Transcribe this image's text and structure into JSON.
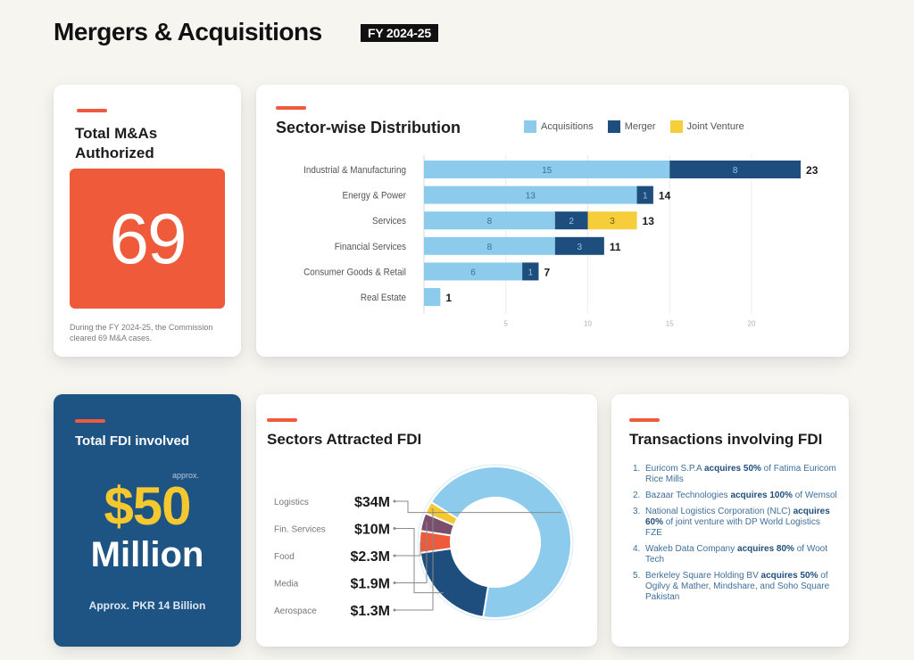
{
  "header": {
    "title": "Mergers & Acquisitions",
    "badge": "FY 2024-25"
  },
  "colors": {
    "accent_orange": "#ef5a3c",
    "acquisitions": "#8ccbec",
    "merger": "#1e4e7d",
    "joint_venture": "#f6cd3a",
    "fdi_card_bg": "#1e5484",
    "fdi_amount": "#f6c830"
  },
  "total_card": {
    "title": "Total M&As Authorized",
    "value": "69",
    "note": "During the FY 2024-25, the Commission cleared 69 M&A cases."
  },
  "fdi_card": {
    "title": "Total FDI involved",
    "approx_label": "approx.",
    "amount": "$50",
    "unit": "Million",
    "pkr": "Approx. PKR 14 Billion"
  },
  "sectors_fdi_card": {
    "title": "Sectors Attracted FDI"
  },
  "transactions_card": {
    "title": "Transactions involving FDI",
    "items": [
      {
        "num": "1.",
        "pre": "Euricom S.P.A ",
        "bold": "acquires 50%",
        "post": " of Fatima Euricom Rice Mills"
      },
      {
        "num": "2.",
        "pre": "Bazaar Technologies ",
        "bold": "acquires 100%",
        "post": " of Wemsol"
      },
      {
        "num": "3.",
        "pre": "National Logistics Corporation (NLC) ",
        "bold": "acquires 60%",
        "post": " of joint venture with DP World Logistics FZE"
      },
      {
        "num": "4.",
        "pre": "Wakeb Data Company ",
        "bold": "acquires 80%",
        "post": " of Woot Tech"
      },
      {
        "num": "5.",
        "pre": "Berkeley Square Holding BV ",
        "bold": "acquires 50%",
        "post": " of Ogilvy & Mather, Mindshare, and Soho Square Pakistan"
      }
    ]
  },
  "chart_data": [
    {
      "type": "bar",
      "orientation": "horizontal",
      "stacked": true,
      "title": "Sector-wise Distribution",
      "categories": [
        "Industrial & Manufacturing",
        "Energy & Power",
        "Services",
        "Financial Services",
        "Consumer Goods & Retail",
        "Real Estate"
      ],
      "series": [
        {
          "name": "Acquisitions",
          "values": [
            15,
            13,
            8,
            8,
            6,
            1
          ]
        },
        {
          "name": "Merger",
          "values": [
            8,
            1,
            2,
            3,
            1,
            0
          ]
        },
        {
          "name": "Joint Venture",
          "values": [
            0,
            0,
            3,
            0,
            0,
            0
          ]
        }
      ],
      "totals": [
        23,
        14,
        13,
        11,
        7,
        1
      ],
      "xticks": [
        5,
        10,
        15,
        20
      ],
      "xlim": [
        0,
        24
      ],
      "xlabel": "",
      "ylabel": "",
      "legend": "top-right",
      "grid": true
    },
    {
      "type": "pie",
      "donut": true,
      "title": "Sectors Attracted FDI",
      "labels": [
        "Logistics",
        "Fin. Services",
        "Food",
        "Media",
        "Aerospace"
      ],
      "values": [
        34,
        10,
        2.3,
        1.9,
        1.3
      ],
      "value_labels": [
        "$34M",
        "$10M",
        "$2.3M",
        "$1.9M",
        "$1.3M"
      ],
      "unit": "USD millions",
      "colors": [
        "#8ccbec",
        "#1e4e7d",
        "#ee5a3a",
        "#7a4f6e",
        "#f6c830"
      ]
    }
  ]
}
